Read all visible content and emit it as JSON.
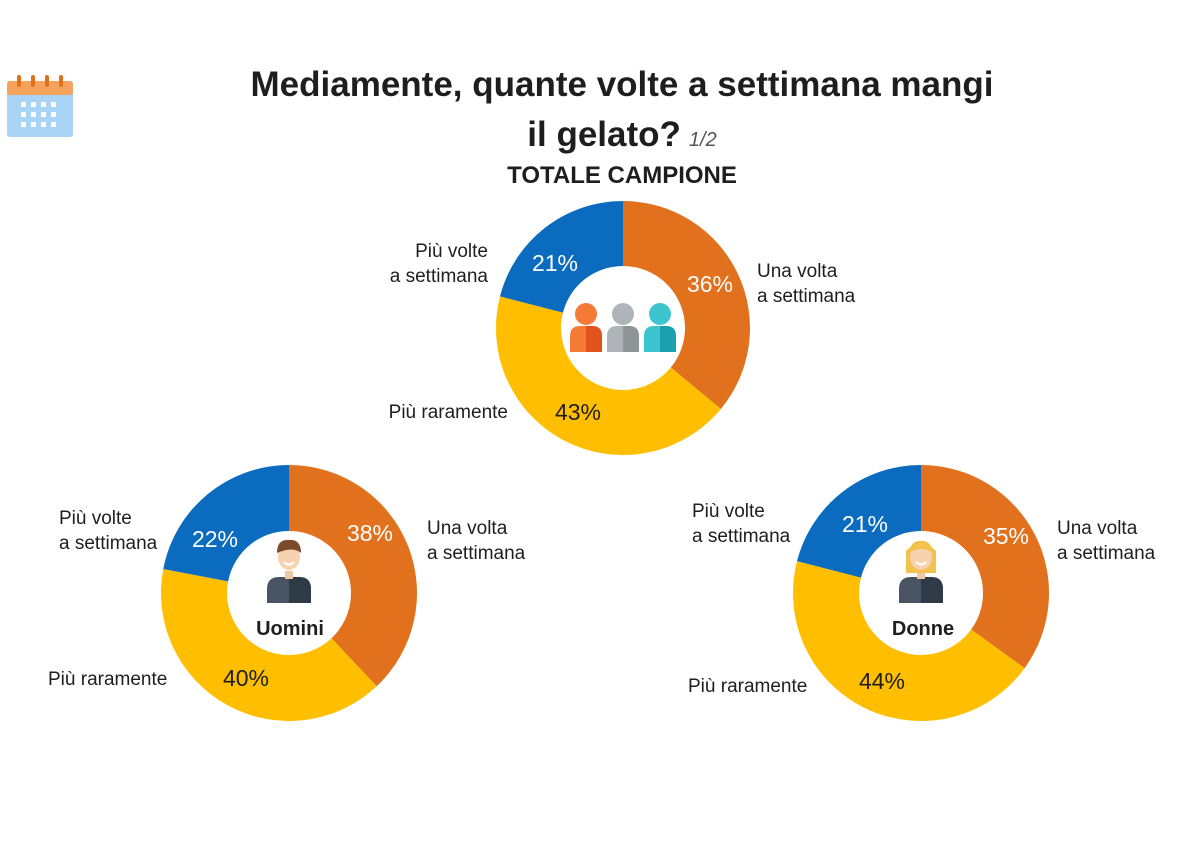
{
  "header": {
    "title_line1": "Mediamente, quante volte a settimana mangi",
    "title_line2": "il gelato?",
    "page_indicator": "1/2",
    "subtitle": "TOTALE CAMPIONE",
    "icon": "calendar-icon"
  },
  "colors": {
    "orange": "#E2711D",
    "yellow": "#FFBF00",
    "blue": "#0A6BBF",
    "label_white": "#FFFFFF",
    "label_dark": "#1E1E1E"
  },
  "chart_data": [
    {
      "type": "pie",
      "name": "TOTALE CAMPIONE",
      "center_label": "",
      "center_icon": "people-group-icon",
      "categories": [
        "Una volta a settimana",
        "Più raramente",
        "Più volte a settimana"
      ],
      "values": [
        36,
        43,
        21
      ],
      "value_labels": [
        "36%",
        "43%",
        "21%"
      ],
      "colors": [
        "#E2711D",
        "#FFBF00",
        "#0A6BBF"
      ],
      "label_lines": [
        [
          "Una volta",
          "a settimana"
        ],
        [
          "Più raramente"
        ],
        [
          "Più volte",
          "a settimana"
        ]
      ]
    },
    {
      "type": "pie",
      "name": "Uomini",
      "center_label": "Uomini",
      "center_icon": "man-avatar-icon",
      "categories": [
        "Una volta a settimana",
        "Più raramente",
        "Più volte a settimana"
      ],
      "values": [
        38,
        40,
        22
      ],
      "value_labels": [
        "38%",
        "40%",
        "22%"
      ],
      "colors": [
        "#E2711D",
        "#FFBF00",
        "#0A6BBF"
      ],
      "label_lines": [
        [
          "Una volta",
          "a settimana"
        ],
        [
          "Più raramente"
        ],
        [
          "Più volte",
          "a settimana"
        ]
      ]
    },
    {
      "type": "pie",
      "name": "Donne",
      "center_label": "Donne",
      "center_icon": "woman-avatar-icon",
      "categories": [
        "Una volta a settimana",
        "Più raramente",
        "Più volte a settimana"
      ],
      "values": [
        35,
        44,
        21
      ],
      "value_labels": [
        "35%",
        "44%",
        "21%"
      ],
      "colors": [
        "#E2711D",
        "#FFBF00",
        "#0A6BBF"
      ],
      "label_lines": [
        [
          "Una volta",
          "a settimana"
        ],
        [
          "Più raramente"
        ],
        [
          "Più volte",
          "a settimana"
        ]
      ]
    }
  ]
}
